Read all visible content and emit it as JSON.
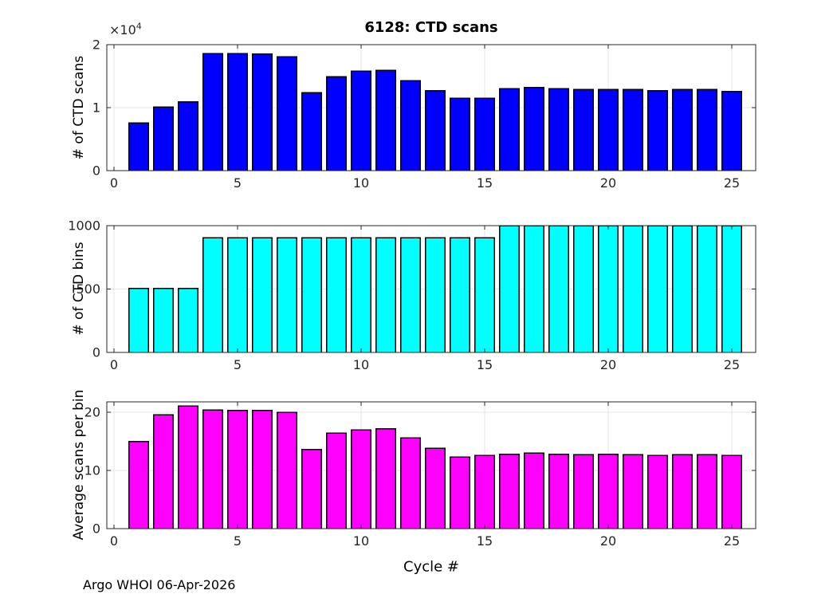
{
  "figure": {
    "xlabel": "Cycle #",
    "footer": "Argo WHOI 06-Apr-2026",
    "background_color": "#ffffff",
    "axis_color": "#262626",
    "grid_color": "#e6e6e6",
    "bar_edge_color": "#000000"
  },
  "chart_data": [
    {
      "type": "bar",
      "id": "ctd-scans",
      "title": "6128: CTD scans",
      "ylabel": "# of CTD scans",
      "y_exponent_base": "×10",
      "y_exponent_power": "4",
      "bar_color": "#0000ff",
      "categories": [
        1,
        2,
        3,
        4,
        5,
        6,
        7,
        8,
        9,
        10,
        11,
        12,
        13,
        14,
        15,
        16,
        17,
        18,
        19,
        20,
        21,
        22,
        23,
        24,
        25
      ],
      "values": [
        7600,
        10100,
        10900,
        18600,
        18600,
        18500,
        18100,
        12400,
        14900,
        15800,
        15900,
        14300,
        12700,
        11500,
        11500,
        13000,
        13200,
        13000,
        12900,
        12900,
        12900,
        12700,
        12900,
        12900,
        12600
      ],
      "xlim": [
        -0.29,
        25.97
      ],
      "ylim": [
        0,
        20000
      ],
      "xticks": [
        0,
        5,
        10,
        15,
        20,
        25
      ],
      "xtick_labels": [
        "0",
        "5",
        "10",
        "15",
        "20",
        "25"
      ],
      "yticks": [
        0,
        10000,
        20000
      ],
      "ytick_labels": [
        "0",
        "1",
        "2"
      ],
      "grid": "on",
      "legend": "none"
    },
    {
      "type": "bar",
      "id": "ctd-bins",
      "title": "",
      "ylabel": "# of CTD bins",
      "bar_color": "#00ffff",
      "categories": [
        1,
        2,
        3,
        4,
        5,
        6,
        7,
        8,
        9,
        10,
        11,
        12,
        13,
        14,
        15,
        16,
        17,
        18,
        19,
        20,
        21,
        22,
        23,
        24,
        25
      ],
      "values": [
        505,
        505,
        505,
        905,
        905,
        905,
        905,
        905,
        905,
        905,
        905,
        905,
        905,
        905,
        905,
        1000,
        1000,
        1000,
        1000,
        1000,
        1000,
        1000,
        1000,
        1000,
        1000
      ],
      "xlim": [
        -0.29,
        25.97
      ],
      "ylim": [
        0,
        1000
      ],
      "xticks": [
        0,
        5,
        10,
        15,
        20,
        25
      ],
      "xtick_labels": [
        "0",
        "5",
        "10",
        "15",
        "20",
        "25"
      ],
      "yticks": [
        0,
        500,
        1000
      ],
      "ytick_labels": [
        "0",
        "500",
        "1000"
      ],
      "grid": "on",
      "legend": "none"
    },
    {
      "type": "bar",
      "id": "avg-scans-per-bin",
      "title": "",
      "ylabel": "Average scans per bin",
      "xlabel": "Cycle #",
      "bar_color": "#ff00ff",
      "categories": [
        1,
        2,
        3,
        4,
        5,
        6,
        7,
        8,
        9,
        10,
        11,
        12,
        13,
        14,
        15,
        16,
        17,
        18,
        19,
        20,
        21,
        22,
        23,
        24,
        25
      ],
      "values": [
        15.0,
        19.6,
        21.1,
        20.4,
        20.3,
        20.3,
        20.0,
        13.6,
        16.4,
        17.0,
        17.2,
        15.6,
        13.8,
        12.3,
        12.6,
        12.8,
        13.0,
        12.8,
        12.7,
        12.8,
        12.7,
        12.6,
        12.7,
        12.7,
        12.6
      ],
      "xlim": [
        -0.29,
        25.97
      ],
      "ylim": [
        0,
        21.8
      ],
      "xticks": [
        0,
        5,
        10,
        15,
        20,
        25
      ],
      "xtick_labels": [
        "0",
        "5",
        "10",
        "15",
        "20",
        "25"
      ],
      "yticks": [
        0,
        10,
        20
      ],
      "ytick_labels": [
        "0",
        "10",
        "20"
      ],
      "grid": "on",
      "legend": "none"
    }
  ]
}
